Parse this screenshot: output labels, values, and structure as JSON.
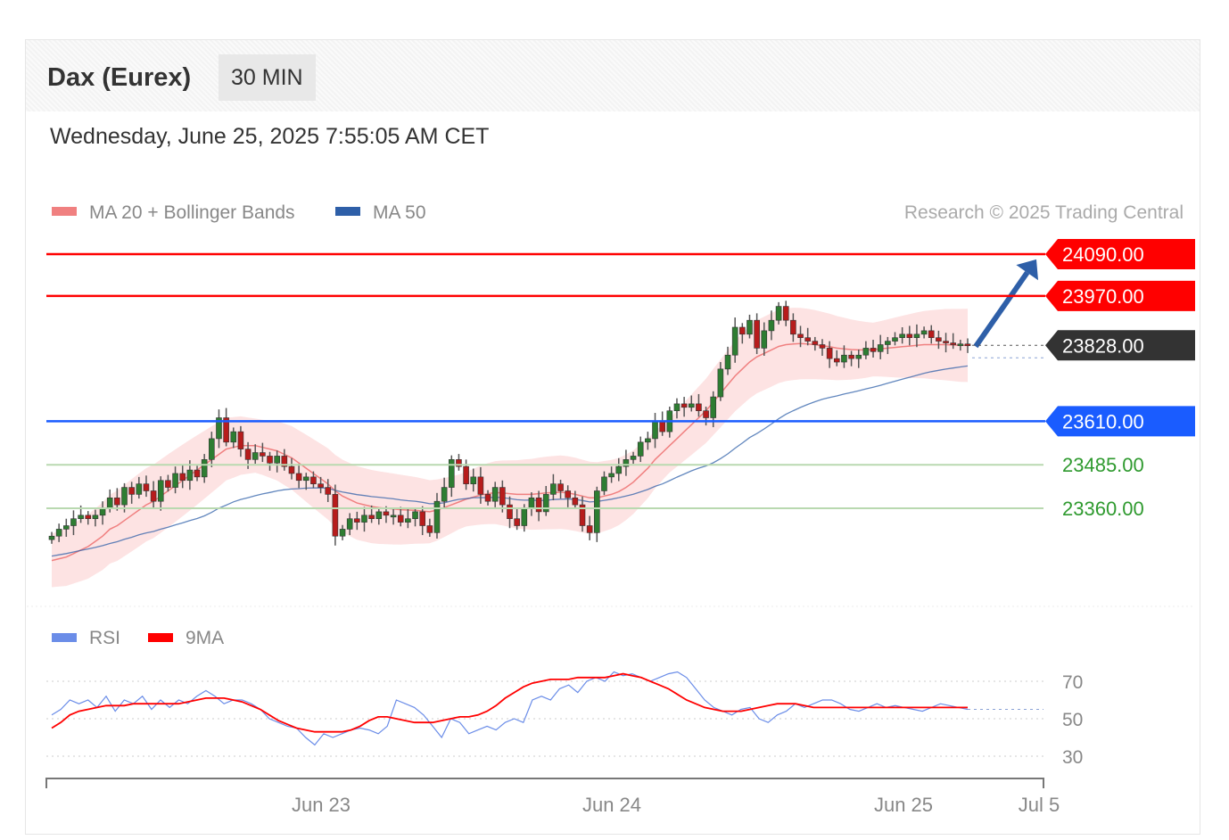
{
  "header": {
    "title": "Dax (Eurex)",
    "timeframe": "30 MIN",
    "datetime": "Wednesday, June 25, 2025 7:55:05 AM CET"
  },
  "legend": {
    "items": [
      {
        "label": "MA 20 + Bollinger Bands",
        "color": "#f08080"
      },
      {
        "label": "MA 50",
        "color": "#2e5fa8"
      }
    ],
    "copyright": "Research © 2025 Trading Central"
  },
  "chart_data": [
    {
      "type": "candlestick",
      "title": "",
      "ylim": [
        23000,
        24150
      ],
      "x_labels": [
        "Jun 23",
        "Jun 24",
        "Jun 25",
        "Jul 5"
      ],
      "levels": [
        {
          "value": 24090,
          "label": "24090.00",
          "role": "resistance",
          "color": "#ff0000"
        },
        {
          "value": 23970,
          "label": "23970.00",
          "role": "resistance",
          "color": "#ff0000"
        },
        {
          "value": 23828,
          "label": "23828.00",
          "role": "last",
          "color": "#333333"
        },
        {
          "value": 23610,
          "label": "23610.00",
          "role": "pivot",
          "color": "#1a5cff"
        },
        {
          "value": 23485,
          "label": "23485.00",
          "role": "support",
          "color": "#2f9a2f"
        },
        {
          "value": 23360,
          "label": "23360.00",
          "role": "support",
          "color": "#2f9a2f"
        }
      ],
      "arrow": {
        "direction": "up",
        "from": 23830,
        "to": 24080,
        "color": "#2e5fa8"
      },
      "series": [
        {
          "name": "MA 20 + Bollinger Bands",
          "color": "#f08080"
        },
        {
          "name": "MA 50",
          "color": "#2e5fa8"
        }
      ],
      "closes": [
        23280,
        23300,
        23310,
        23330,
        23340,
        23330,
        23340,
        23360,
        23390,
        23370,
        23420,
        23400,
        23430,
        23410,
        23380,
        23440,
        23420,
        23460,
        23440,
        23470,
        23450,
        23500,
        23560,
        23620,
        23550,
        23580,
        23530,
        23500,
        23520,
        23510,
        23490,
        23510,
        23480,
        23460,
        23440,
        23450,
        23430,
        23420,
        23400,
        23280,
        23300,
        23330,
        23320,
        23340,
        23330,
        23350,
        23340,
        23340,
        23320,
        23330,
        23350,
        23310,
        23290,
        23380,
        23420,
        23500,
        23480,
        23430,
        23450,
        23400,
        23380,
        23420,
        23370,
        23330,
        23310,
        23360,
        23390,
        23350,
        23400,
        23430,
        23410,
        23390,
        23370,
        23310,
        23290,
        23410,
        23450,
        23460,
        23480,
        23500,
        23510,
        23550,
        23560,
        23610,
        23580,
        23640,
        23660,
        23650,
        23660,
        23640,
        23620,
        23680,
        23760,
        23800,
        23880,
        23860,
        23900,
        23820,
        23870,
        23900,
        23940,
        23900,
        23860,
        23850,
        23840,
        23830,
        23820,
        23790,
        23780,
        23800,
        23790,
        23800,
        23820,
        23810,
        23830,
        23840,
        23850,
        23860,
        23850,
        23860,
        23870,
        23850,
        23840,
        23835,
        23830,
        23832,
        23828
      ],
      "ma20": [
        23210,
        23215,
        23220,
        23230,
        23240,
        23250,
        23265,
        23280,
        23300,
        23310,
        23325,
        23340,
        23355,
        23370,
        23380,
        23395,
        23410,
        23425,
        23440,
        23455,
        23470,
        23485,
        23500,
        23515,
        23530,
        23535,
        23540,
        23540,
        23540,
        23535,
        23530,
        23525,
        23515,
        23505,
        23490,
        23475,
        23460,
        23445,
        23430,
        23410,
        23395,
        23385,
        23375,
        23370,
        23365,
        23362,
        23360,
        23358,
        23356,
        23355,
        23354,
        23352,
        23350,
        23355,
        23362,
        23370,
        23378,
        23386,
        23392,
        23398,
        23402,
        23405,
        23404,
        23402,
        23400,
        23400,
        23400,
        23402,
        23404,
        23405,
        23406,
        23404,
        23400,
        23395,
        23390,
        23390,
        23395,
        23400,
        23408,
        23420,
        23435,
        23455,
        23475,
        23500,
        23520,
        23540,
        23560,
        23580,
        23600,
        23620,
        23640,
        23665,
        23690,
        23715,
        23740,
        23760,
        23780,
        23795,
        23805,
        23815,
        23825,
        23830,
        23832,
        23833,
        23832,
        23830,
        23827,
        23824,
        23820,
        23818,
        23816,
        23815,
        23815,
        23816,
        23818,
        23820,
        23822,
        23824,
        23826,
        23828,
        23830,
        23830,
        23830,
        23830,
        23829,
        23828,
        23828
      ]
    },
    {
      "type": "line",
      "title": "",
      "ylim": [
        20,
        85
      ],
      "y_ticks": [
        "70",
        "50",
        "30"
      ],
      "series": [
        {
          "name": "RSI",
          "color": "#6b8de8",
          "values": [
            52,
            55,
            60,
            58,
            60,
            56,
            62,
            54,
            60,
            58,
            62,
            55,
            60,
            56,
            60,
            58,
            62,
            65,
            62,
            58,
            60,
            60,
            58,
            55,
            50,
            48,
            46,
            45,
            40,
            36,
            42,
            40,
            42,
            44,
            45,
            44,
            42,
            46,
            60,
            58,
            56,
            52,
            46,
            40,
            50,
            48,
            42,
            44,
            46,
            44,
            48,
            50,
            48,
            60,
            62,
            60,
            66,
            68,
            64,
            70,
            72,
            70,
            75,
            73,
            74,
            72,
            70,
            72,
            74,
            75,
            72,
            66,
            60,
            56,
            54,
            52,
            55,
            56,
            50,
            48,
            52,
            54,
            58,
            56,
            58,
            60,
            60,
            58,
            55,
            54,
            56,
            58,
            56,
            57,
            56,
            55,
            54,
            56,
            58,
            57,
            56,
            55
          ]
        },
        {
          "name": "9MA",
          "color": "#ff0000",
          "values": [
            45,
            48,
            52,
            54,
            55,
            56,
            57,
            57,
            57,
            58,
            58,
            58,
            58,
            58,
            58,
            59,
            60,
            61,
            61,
            61,
            60,
            59,
            57,
            55,
            52,
            49,
            47,
            45,
            44,
            43,
            43,
            43,
            43,
            44,
            46,
            49,
            51,
            51,
            50,
            49,
            48,
            48,
            48,
            49,
            50,
            51,
            51,
            52,
            54,
            57,
            61,
            64,
            67,
            69,
            70,
            71,
            71,
            71,
            72,
            72,
            72,
            72,
            73,
            74,
            73,
            72,
            70,
            68,
            66,
            63,
            60,
            58,
            56,
            55,
            54,
            54,
            54,
            55,
            56,
            57,
            58,
            58,
            58,
            57,
            56,
            56,
            56,
            56,
            56,
            56,
            56,
            56,
            56,
            56,
            56,
            56,
            56,
            56,
            56,
            56,
            56,
            56
          ]
        }
      ],
      "legend": [
        {
          "label": "RSI",
          "color": "#6b8de8"
        },
        {
          "label": "9MA",
          "color": "#ff0000"
        }
      ]
    }
  ]
}
